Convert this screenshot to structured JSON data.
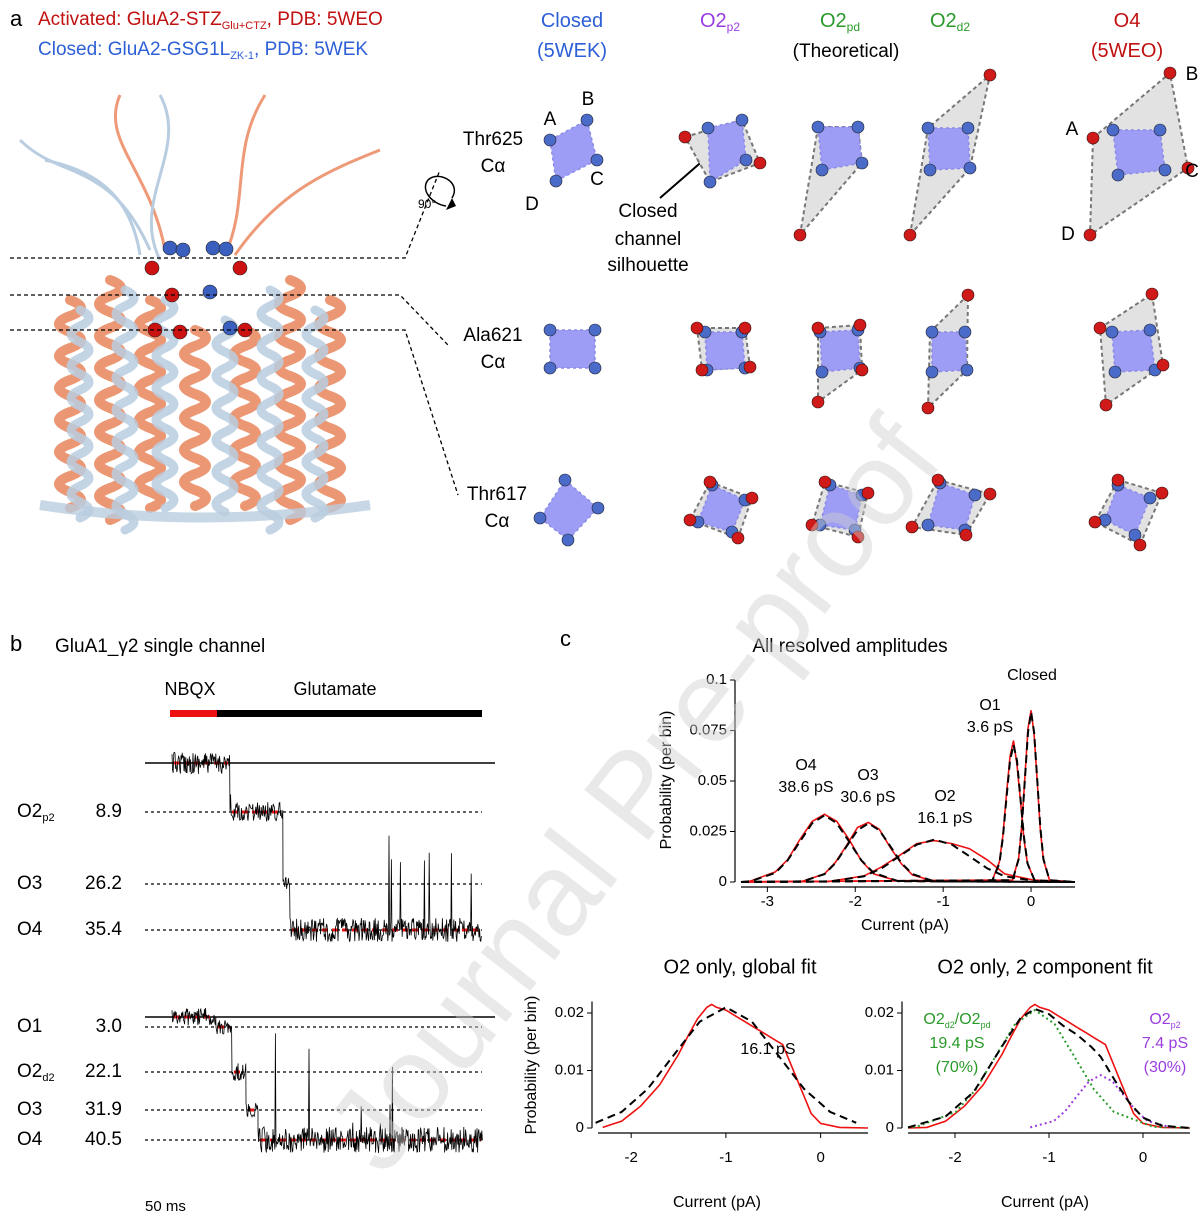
{
  "panel_a": {
    "label": "a",
    "legend": [
      {
        "color": "#c01010",
        "parts": [
          {
            "text": "Activated: GluA2-STZ"
          },
          {
            "sub": "Glu+CTZ"
          },
          {
            "text": ", PDB: 5WEO"
          }
        ]
      },
      {
        "color": "#2d5fd6",
        "parts": [
          {
            "text": "Closed: GluA2-GSG1L"
          },
          {
            "sub": "ZK-1"
          },
          {
            "text": ", PDB: 5WEK"
          }
        ]
      }
    ],
    "columns": [
      {
        "color": "#2d5fd6",
        "lines": [
          [
            {
              "text": "Closed"
            }
          ],
          [
            {
              "text": "(5WEK)"
            }
          ]
        ]
      },
      {
        "color": "#9a3de0",
        "lines": [
          [
            {
              "text": "O2"
            },
            {
              "sub": "p2"
            }
          ]
        ]
      },
      {
        "color": "#2a9a2a",
        "lines": [
          [
            {
              "text": "O2"
            },
            {
              "sub": "pd"
            }
          ]
        ]
      },
      {
        "color": "#2a9a2a",
        "lines": [
          [
            {
              "text": "O2"
            },
            {
              "sub": "d2"
            }
          ]
        ]
      },
      {
        "color": "#c01010",
        "lines": [
          [
            {
              "text": "O4"
            }
          ],
          [
            {
              "text": "(5WEO)"
            }
          ]
        ]
      }
    ],
    "theoretical": "(Theoretical)",
    "rows": [
      [
        "Thr625",
        "Cα"
      ],
      [
        "Ala621",
        "Cα"
      ],
      [
        "Thr617",
        "Cα"
      ]
    ],
    "rotation": "90°",
    "vertex_labels": [
      "A",
      "B",
      "C",
      "D"
    ],
    "callout": [
      "Closed",
      "channel",
      "silhouette"
    ]
  },
  "panel_b": {
    "label": "b",
    "title": "GluA1_γ2 single channel",
    "bars": [
      "NBQX",
      "Glutamate"
    ],
    "rows": [
      {
        "state": [
          {
            "text": "O2"
          },
          {
            "sub": "p2"
          }
        ],
        "conductance": "8.9"
      },
      {
        "state": [
          {
            "text": "O3"
          }
        ],
        "conductance": "26.2"
      },
      {
        "state": [
          {
            "text": "O4"
          }
        ],
        "conductance": "35.4"
      },
      {
        "state": [
          {
            "text": "O1"
          }
        ],
        "conductance": "3.0"
      },
      {
        "state": [
          {
            "text": "O2"
          },
          {
            "sub": "d2"
          }
        ],
        "conductance": "22.1"
      },
      {
        "state": [
          {
            "text": "O3"
          }
        ],
        "conductance": "31.9"
      },
      {
        "state": [
          {
            "text": "O4"
          }
        ],
        "conductance": "40.5"
      }
    ],
    "scale": "50 ms"
  },
  "panel_c_label": "c",
  "watermark": "Journal Pre-proof",
  "chart_data": [
    {
      "type": "line",
      "title": "All resolved amplitudes",
      "xlabel": "Current (pA)",
      "ylabel": "Probability (per bin)",
      "xlim": [
        -3.3,
        0.5
      ],
      "ylim": [
        0,
        0.1
      ],
      "xticks": [
        -3,
        -2,
        -1,
        0
      ],
      "yticks": [
        0,
        0.025,
        0.05,
        0.075,
        0.1
      ],
      "annotations": [
        {
          "color": "#000000",
          "lines": [
            [
              {
                "text": "Closed"
              }
            ]
          ]
        },
        {
          "color": "#000000",
          "lines": [
            [
              {
                "text": "O1"
              }
            ],
            [
              {
                "text": "3.6 pS"
              }
            ]
          ]
        },
        {
          "color": "#000000",
          "lines": [
            [
              {
                "text": "O2"
              }
            ],
            [
              {
                "text": "16.1 pS"
              }
            ]
          ]
        },
        {
          "color": "#000000",
          "lines": [
            [
              {
                "text": "O3"
              }
            ],
            [
              {
                "text": "30.6 pS"
              }
            ]
          ]
        },
        {
          "color": "#000000",
          "lines": [
            [
              {
                "text": "O4"
              }
            ],
            [
              {
                "text": "38.6 pS"
              }
            ]
          ]
        }
      ],
      "series": [
        {
          "color": "#ee1111",
          "style": "solid",
          "x": [
            -3.3,
            -0.21,
            -0.14,
            -0.105,
            -0.07,
            -0.035,
            0,
            0.035,
            0.07,
            0.105,
            0.14,
            0.21,
            0.5
          ],
          "values": [
            0,
            0.001,
            0.012,
            0.028,
            0.052,
            0.076,
            0.085,
            0.073,
            0.05,
            0.026,
            0.011,
            0.001,
            0
          ]
        },
        {
          "color": "#ee1111",
          "style": "solid",
          "x": [
            -3.3,
            -0.44,
            -0.36,
            -0.32,
            -0.28,
            -0.24,
            -0.2,
            -0.16,
            -0.12,
            -0.08,
            -0.04,
            0.04,
            0.5
          ],
          "values": [
            0,
            0.001,
            0.01,
            0.023,
            0.043,
            0.062,
            0.07,
            0.058,
            0.04,
            0.021,
            0.009,
            0.001,
            0
          ]
        },
        {
          "color": "#ee1111",
          "style": "solid",
          "x": [
            -3.3,
            -2.3,
            -1.9,
            -1.7,
            -1.5,
            -1.3,
            -1.1,
            -0.9,
            -0.7,
            -0.5,
            -0.3,
            0.1,
            0.5
          ],
          "values": [
            0,
            0.0003,
            0.003,
            0.0075,
            0.013,
            0.019,
            0.0205,
            0.019,
            0.0165,
            0.011,
            0.004,
            0.0003,
            0
          ]
        },
        {
          "color": "#ee1111",
          "style": "solid",
          "x": [
            -3.3,
            -2.6,
            -2.35,
            -2.225,
            -2.1,
            -1.975,
            -1.85,
            -1.725,
            -1.6,
            -1.475,
            -1.35,
            -1.1,
            0.5
          ],
          "values": [
            0,
            0.0004,
            0.004,
            0.0098,
            0.018,
            0.027,
            0.0295,
            0.026,
            0.017,
            0.009,
            0.0035,
            0.0003,
            0
          ]
        },
        {
          "color": "#ee1111",
          "style": "solid",
          "x": [
            -3.3,
            -3.19,
            -2.91,
            -2.77,
            -2.63,
            -2.49,
            -2.35,
            -2.21,
            -2.07,
            -1.93,
            -1.79,
            -1.51,
            0.5
          ],
          "values": [
            0,
            0.0005,
            0.005,
            0.011,
            0.021,
            0.03,
            0.0335,
            0.03,
            0.021,
            0.0105,
            0.004,
            0.0004,
            0
          ]
        },
        {
          "color": "#000000",
          "style": "dashed",
          "x": [
            -3.3,
            -0.21,
            -0.14,
            -0.105,
            -0.07,
            -0.035,
            0,
            0.035,
            0.07,
            0.105,
            0.14,
            0.21,
            0.5
          ],
          "values": [
            0,
            0.0009,
            0.0114,
            0.0273,
            0.0509,
            0.0741,
            0.084,
            0.0741,
            0.0509,
            0.0273,
            0.0114,
            0.0009,
            0
          ]
        },
        {
          "color": "#000000",
          "style": "dashed",
          "x": [
            -3.3,
            -0.44,
            -0.36,
            -0.32,
            -0.28,
            -0.24,
            -0.2,
            -0.16,
            -0.12,
            -0.08,
            -0.04,
            0.04,
            0.5
          ],
          "values": [
            0,
            0.0008,
            0.0092,
            0.0221,
            0.0412,
            0.06,
            0.068,
            0.06,
            0.0412,
            0.0221,
            0.0092,
            0.0008,
            0
          ]
        },
        {
          "color": "#000000",
          "style": "dashed",
          "x": [
            -3.3,
            -2.3,
            -1.9,
            -1.7,
            -1.5,
            -1.3,
            -1.1,
            -0.9,
            -0.7,
            -0.5,
            -0.3,
            0.1,
            0.5
          ],
          "values": [
            0,
            0.0002,
            0.0028,
            0.0068,
            0.0127,
            0.0185,
            0.021,
            0.0185,
            0.0127,
            0.0068,
            0.0028,
            0.0002,
            0
          ]
        },
        {
          "color": "#000000",
          "style": "dashed",
          "x": [
            -3.3,
            -2.6,
            -2.35,
            -2.225,
            -2.1,
            -1.975,
            -1.85,
            -1.725,
            -1.6,
            -1.475,
            -1.35,
            -1.1,
            0.5
          ],
          "values": [
            0,
            0.0003,
            0.0039,
            0.0094,
            0.0176,
            0.0256,
            0.029,
            0.0256,
            0.0176,
            0.0094,
            0.0039,
            0.0003,
            0
          ]
        },
        {
          "color": "#000000",
          "style": "dashed",
          "x": [
            -3.3,
            -3.19,
            -2.91,
            -2.77,
            -2.63,
            -2.49,
            -2.35,
            -2.21,
            -2.07,
            -1.93,
            -1.79,
            -1.51,
            0.5
          ],
          "values": [
            0,
            0.0004,
            0.0045,
            0.0107,
            0.02,
            0.0291,
            0.033,
            0.0291,
            0.02,
            0.0107,
            0.0045,
            0.0004,
            0
          ]
        }
      ]
    },
    {
      "type": "line",
      "title": "O2 only, global fit",
      "xlabel": "Current (pA)",
      "ylabel": "Probability (per bin)",
      "xlim": [
        -2.35,
        0.5
      ],
      "ylim": [
        0,
        0.022
      ],
      "xticks": [
        -2,
        -1,
        0
      ],
      "yticks": [
        0,
        0.01,
        0.02
      ],
      "annotations": [
        {
          "color": "#000000",
          "lines": [
            [
              {
                "text": "16.1 pS"
              }
            ]
          ]
        }
      ],
      "series": [
        {
          "color": "#ee1111",
          "style": "solid",
          "x": [
            -2.3,
            -2.1,
            -1.9,
            -1.7,
            -1.5,
            -1.4,
            -1.3,
            -1.2,
            -1.15,
            -1.1,
            -1.0,
            -0.9,
            -0.8,
            -0.7,
            -0.6,
            -0.5,
            -0.4,
            -0.3,
            -0.2,
            -0.1,
            0,
            0.2,
            0.5
          ],
          "values": [
            0.0001,
            0.0012,
            0.0038,
            0.0075,
            0.0128,
            0.016,
            0.019,
            0.021,
            0.0215,
            0.021,
            0.0205,
            0.0195,
            0.0185,
            0.0175,
            0.0165,
            0.0155,
            0.0145,
            0.0105,
            0.0065,
            0.0025,
            0.0008,
            0.0001,
            0
          ]
        },
        {
          "color": "#000000",
          "style": "dashed",
          "x": [
            -2.375,
            -2.1,
            -1.825,
            -1.55,
            -1.275,
            -1,
            -0.725,
            -0.45,
            -0.175,
            0.1,
            0.375
          ],
          "values": [
            0.0009,
            0.0028,
            0.0068,
            0.0127,
            0.0185,
            0.021,
            0.0185,
            0.0127,
            0.0068,
            0.0028,
            0.0009
          ]
        }
      ]
    },
    {
      "type": "line",
      "title": "O2 only, 2 component fit",
      "xlabel": "Current (pA)",
      "xlim": [
        -2.5,
        0.5
      ],
      "ylim": [
        0,
        0.022
      ],
      "xticks": [
        -2,
        -1,
        0
      ],
      "yticks": [
        0,
        0.01,
        0.02
      ],
      "annotations": [
        {
          "color": "#2a9a2a",
          "lines": [
            [
              {
                "text": "O2"
              },
              {
                "sub": "d2"
              },
              {
                "text": "/O2"
              },
              {
                "sub": "pd"
              }
            ],
            [
              {
                "text": "19.4 pS"
              }
            ],
            [
              {
                "text": "(70%)"
              }
            ]
          ]
        },
        {
          "color": "#9a3de0",
          "lines": [
            [
              {
                "text": "O2"
              },
              {
                "sub": "p2"
              }
            ],
            [
              {
                "text": "7.4 pS"
              }
            ],
            [
              {
                "text": "(30%)"
              }
            ]
          ]
        }
      ],
      "series": [
        {
          "color": "#ee1111",
          "style": "solid",
          "x": [
            -2.5,
            -2.3,
            -2.1,
            -1.9,
            -1.7,
            -1.5,
            -1.4,
            -1.3,
            -1.2,
            -1.15,
            -1.1,
            -1.0,
            -0.9,
            -0.8,
            -0.7,
            -0.6,
            -0.5,
            -0.4,
            -0.3,
            -0.2,
            -0.1,
            0,
            0.2,
            0.5
          ],
          "values": [
            0,
            0.0001,
            0.0012,
            0.0038,
            0.0075,
            0.0128,
            0.016,
            0.019,
            0.021,
            0.0215,
            0.021,
            0.0205,
            0.0195,
            0.0185,
            0.0175,
            0.0165,
            0.0155,
            0.0145,
            0.0105,
            0.0065,
            0.0025,
            0.0008,
            0.0001,
            0
          ]
        },
        {
          "color": "#2a9a2a",
          "style": "dotted",
          "x": [
            -2.5,
            -2.41,
            -1.99,
            -1.78,
            -1.57,
            -1.36,
            -1.15,
            -0.94,
            -0.73,
            -0.52,
            -0.31,
            0.11,
            0.5
          ],
          "values": [
            0.0001,
            0.0002,
            0.0028,
            0.0067,
            0.0124,
            0.0181,
            0.0205,
            0.0181,
            0.0124,
            0.0067,
            0.0028,
            0.0002,
            0
          ]
        },
        {
          "color": "#9a3de0",
          "style": "dotted",
          "x": [
            -1.2,
            -0.95,
            -0.825,
            -0.7,
            -0.575,
            -0.45,
            -0.325,
            -0.2,
            -0.075,
            0.05,
            0.3
          ],
          "values": [
            0.0001,
            0.0012,
            0.003,
            0.0056,
            0.0081,
            0.0092,
            0.0081,
            0.0056,
            0.003,
            0.0012,
            0.0001
          ]
        },
        {
          "color": "#000000",
          "style": "dashed",
          "x": [
            -2.5,
            -2.1,
            -1.8,
            -1.5,
            -1.3,
            -1.15,
            -1.0,
            -0.85,
            -0.7,
            -0.55,
            -0.45,
            -0.3,
            -0.15,
            0,
            0.2,
            0.5
          ],
          "values": [
            0.0001,
            0.002,
            0.0063,
            0.0142,
            0.0192,
            0.0207,
            0.0198,
            0.0178,
            0.0162,
            0.0141,
            0.0124,
            0.0083,
            0.0045,
            0.0018,
            0.0004,
            0
          ]
        }
      ]
    }
  ]
}
